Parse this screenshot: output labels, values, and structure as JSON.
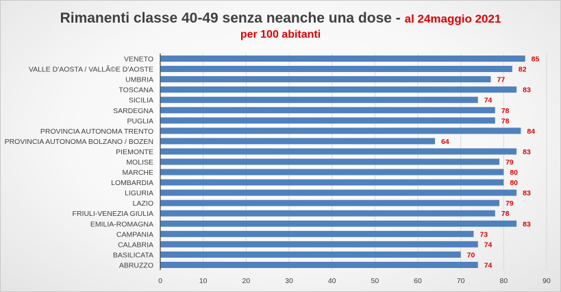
{
  "chart_data": {
    "type": "bar",
    "orientation": "horizontal",
    "title": "Rimanenti classe 40-49  senza neanche una dose -",
    "title_date": "al 24maggio 2021",
    "subtitle": "per 100 abitanti",
    "categories": [
      "VENETO",
      "VALLE D'AOSTA / VALLÃ©E D'AOSTE",
      "UMBRIA",
      "TOSCANA",
      "SICILIA",
      "SARDEGNA",
      "PUGLIA",
      "PROVINCIA AUTONOMA TRENTO",
      "PROVINCIA AUTONOMA BOLZANO / BOZEN",
      "PIEMONTE",
      "MOLISE",
      "MARCHE",
      "LOMBARDIA",
      "LIGURIA",
      "LAZIO",
      "FRIULI-VENEZIA GIULIA",
      "EMILIA-ROMAGNA",
      "CAMPANIA",
      "CALABRIA",
      "BASILICATA",
      "ABRUZZO"
    ],
    "values": [
      85,
      82,
      77,
      83,
      74,
      78,
      78,
      84,
      64,
      83,
      79,
      80,
      80,
      83,
      79,
      78,
      83,
      73,
      74,
      70,
      74
    ],
    "xlim": [
      0,
      90
    ],
    "xticks": [
      0,
      10,
      20,
      30,
      40,
      50,
      60,
      70,
      80,
      90
    ],
    "grid": "vertical",
    "bar_color": "#4f81bd",
    "label_color": "#e00000"
  }
}
